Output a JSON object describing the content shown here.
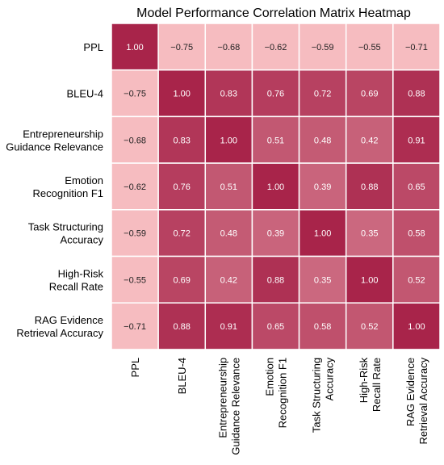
{
  "chart_data": {
    "type": "heatmap",
    "title": "Model Performance Correlation Matrix Heatmap",
    "xlabel": "",
    "ylabel": "",
    "labels": [
      [
        "PPL"
      ],
      [
        "BLEU-4"
      ],
      [
        "Entrepreneurship",
        "Guidance Relevance"
      ],
      [
        "Emotion",
        "Recognition F1"
      ],
      [
        "Task Structuring",
        "Accuracy"
      ],
      [
        "High-Risk",
        "Recall Rate"
      ],
      [
        "RAG Evidence",
        "Retrieval Accuracy"
      ]
    ],
    "matrix": [
      [
        1.0,
        -0.75,
        -0.68,
        -0.62,
        -0.59,
        -0.55,
        -0.71
      ],
      [
        -0.75,
        1.0,
        0.83,
        0.76,
        0.72,
        0.69,
        0.88
      ],
      [
        -0.68,
        0.83,
        1.0,
        0.51,
        0.48,
        0.42,
        0.91
      ],
      [
        -0.62,
        0.76,
        0.51,
        1.0,
        0.39,
        0.88,
        0.65
      ],
      [
        -0.59,
        0.72,
        0.48,
        0.39,
        1.0,
        0.35,
        0.58
      ],
      [
        -0.55,
        0.69,
        0.42,
        0.88,
        0.35,
        1.0,
        0.52
      ],
      [
        -0.71,
        0.88,
        0.91,
        0.65,
        0.58,
        0.52,
        1.0
      ]
    ],
    "grid": true,
    "legend": "none",
    "colors": {
      "low": "#f6bcc0",
      "high": "#a8244a",
      "cell_border": "#ffffff",
      "text_dark": "#222222",
      "text_light": "#ffffff"
    }
  }
}
